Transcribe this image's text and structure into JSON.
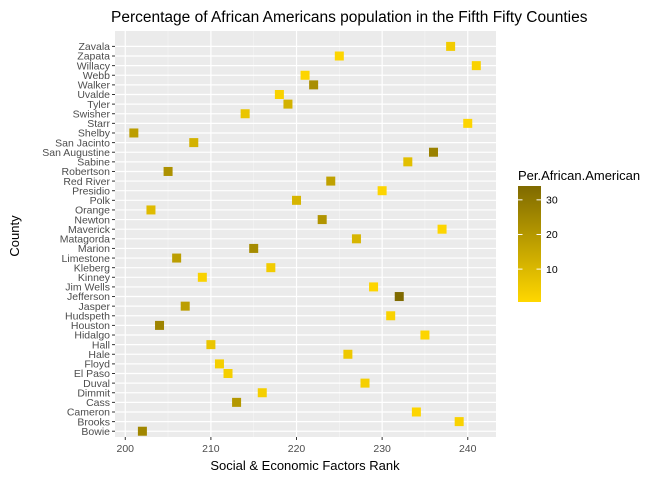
{
  "chart_data": {
    "type": "scatter",
    "title": "Percentage of African Americans population in the Fifth Fifty Counties",
    "xlabel": "Social & Economic Factors Rank",
    "ylabel": "County",
    "xlim": [
      198.8,
      243.3
    ],
    "x_ticks": [
      200,
      210,
      220,
      230,
      240
    ],
    "grid": true,
    "legend": {
      "title": "Per.African.American",
      "placement": "right",
      "ticks": [
        10,
        20,
        30
      ],
      "range": [
        0.5,
        34
      ],
      "color_low": "#FFD700",
      "color_high": "#7F6A00"
    },
    "points": [
      {
        "county": "Bowie",
        "x": 202,
        "value": 25
      },
      {
        "county": "Brooks",
        "x": 239,
        "value": 2
      },
      {
        "county": "Cameron",
        "x": 234,
        "value": 1
      },
      {
        "county": "Cass",
        "x": 213,
        "value": 20
      },
      {
        "county": "Dimmit",
        "x": 216,
        "value": 3
      },
      {
        "county": "Duval",
        "x": 228,
        "value": 3
      },
      {
        "county": "El Paso",
        "x": 212,
        "value": 3
      },
      {
        "county": "Floyd",
        "x": 211,
        "value": 3
      },
      {
        "county": "Hale",
        "x": 226,
        "value": 5
      },
      {
        "county": "Hall",
        "x": 210,
        "value": 6
      },
      {
        "county": "Hidalgo",
        "x": 235,
        "value": 1
      },
      {
        "county": "Houston",
        "x": 204,
        "value": 26
      },
      {
        "county": "Hudspeth",
        "x": 231,
        "value": 2
      },
      {
        "county": "Jasper",
        "x": 207,
        "value": 18
      },
      {
        "county": "Jefferson",
        "x": 232,
        "value": 34
      },
      {
        "county": "Jim Wells",
        "x": 229,
        "value": 1
      },
      {
        "county": "Kinney",
        "x": 209,
        "value": 2
      },
      {
        "county": "Kleberg",
        "x": 217,
        "value": 4
      },
      {
        "county": "Limestone",
        "x": 206,
        "value": 18
      },
      {
        "county": "Marion",
        "x": 215,
        "value": 24
      },
      {
        "county": "Matagorda",
        "x": 227,
        "value": 11
      },
      {
        "county": "Maverick",
        "x": 237,
        "value": 1
      },
      {
        "county": "Newton",
        "x": 223,
        "value": 21
      },
      {
        "county": "Orange",
        "x": 203,
        "value": 9
      },
      {
        "county": "Polk",
        "x": 220,
        "value": 11
      },
      {
        "county": "Presidio",
        "x": 230,
        "value": 1
      },
      {
        "county": "Red River",
        "x": 224,
        "value": 17
      },
      {
        "county": "Robertson",
        "x": 205,
        "value": 22
      },
      {
        "county": "Sabine",
        "x": 233,
        "value": 8
      },
      {
        "county": "San Augustine",
        "x": 236,
        "value": 27
      },
      {
        "county": "San Jacinto",
        "x": 208,
        "value": 12
      },
      {
        "county": "Shelby",
        "x": 201,
        "value": 18
      },
      {
        "county": "Starr",
        "x": 240,
        "value": 1
      },
      {
        "county": "Swisher",
        "x": 214,
        "value": 6
      },
      {
        "county": "Tyler",
        "x": 219,
        "value": 12
      },
      {
        "county": "Uvalde",
        "x": 218,
        "value": 2
      },
      {
        "county": "Walker",
        "x": 222,
        "value": 23
      },
      {
        "county": "Webb",
        "x": 221,
        "value": 1
      },
      {
        "county": "Willacy",
        "x": 241,
        "value": 2
      },
      {
        "county": "Zapata",
        "x": 225,
        "value": 1
      },
      {
        "county": "Zavala",
        "x": 238,
        "value": 4
      }
    ]
  }
}
